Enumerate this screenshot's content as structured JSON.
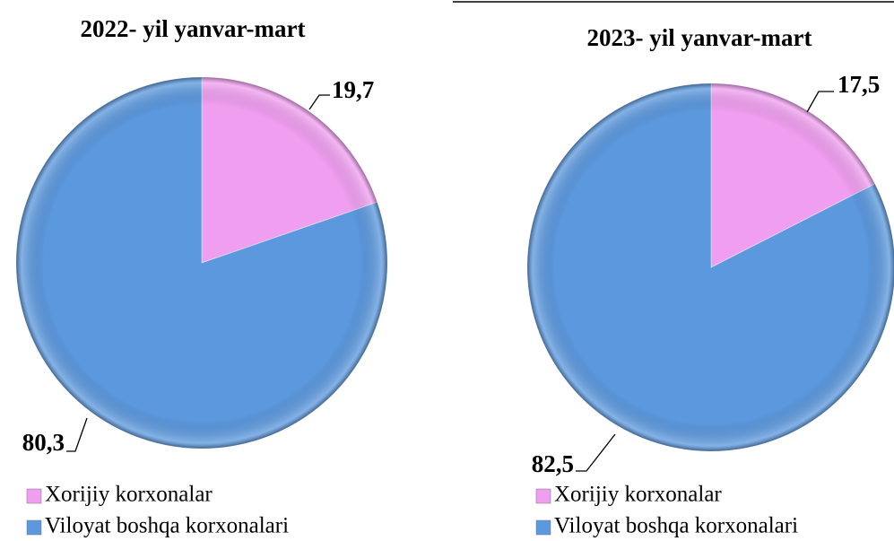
{
  "chart_data": [
    {
      "type": "pie",
      "title": "2022- yil yanvar-mart",
      "categories": [
        "Xorijiy korxonalar",
        "Viloyat boshqa korxonalari"
      ],
      "values": [
        19.7,
        80.3
      ],
      "value_labels": [
        "19,7",
        "80,3"
      ],
      "colors": [
        "#f09ef0",
        "#5b98de"
      ]
    },
    {
      "type": "pie",
      "title": "2023- yil yanvar-mart",
      "categories": [
        "Xorijiy korxonalar",
        "Viloyat boshqa korxonalari"
      ],
      "values": [
        17.5,
        82.5
      ],
      "value_labels": [
        "17,5",
        "82,5"
      ],
      "colors": [
        "#f09ef0",
        "#5b98de"
      ]
    }
  ]
}
